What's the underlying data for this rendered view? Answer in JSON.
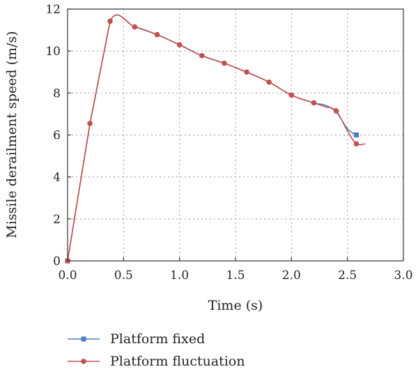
{
  "chart_data": {
    "type": "line",
    "title": "",
    "xlabel": "Time (s)",
    "ylabel": "Missile derailment speed (m/s)",
    "xlim": [
      0,
      3.0
    ],
    "ylim": [
      0,
      12
    ],
    "x_ticks": [
      "0.0",
      "0.5",
      "1.0",
      "1.5",
      "2.0",
      "2.5",
      "3.0"
    ],
    "y_ticks": [
      "0",
      "2",
      "4",
      "6",
      "8",
      "10",
      "12"
    ],
    "grid": true,
    "legend_position": "bottom",
    "series": [
      {
        "name": "Platform fixed",
        "color": "#4a7cc1",
        "marker": "square",
        "line": [
          [
            0,
            0
          ],
          [
            0.2,
            6.55
          ],
          [
            0.38,
            11.42
          ],
          [
            0.6,
            11.15
          ],
          [
            0.8,
            10.78
          ],
          [
            1.0,
            10.3
          ],
          [
            1.2,
            9.78
          ],
          [
            1.4,
            9.42
          ],
          [
            1.6,
            9.0
          ],
          [
            1.8,
            8.52
          ],
          [
            2.0,
            7.9
          ],
          [
            2.2,
            7.53
          ],
          [
            2.3,
            7.42
          ],
          [
            2.4,
            7.1
          ],
          [
            2.5,
            6.3
          ],
          [
            2.58,
            6.0
          ]
        ],
        "markers": [
          [
            0,
            0
          ],
          [
            2.58,
            6.0
          ]
        ]
      },
      {
        "name": "Platform fluctuation",
        "color": "#c0504d",
        "marker": "circle",
        "line": [
          [
            0,
            0
          ],
          [
            0.2,
            6.55
          ],
          [
            0.38,
            11.42
          ],
          [
            0.6,
            11.15
          ],
          [
            0.8,
            10.78
          ],
          [
            1.0,
            10.3
          ],
          [
            1.2,
            9.78
          ],
          [
            1.4,
            9.42
          ],
          [
            1.6,
            9.0
          ],
          [
            1.8,
            8.52
          ],
          [
            2.0,
            7.9
          ],
          [
            2.2,
            7.53
          ],
          [
            2.3,
            7.35
          ],
          [
            2.4,
            7.15
          ],
          [
            2.5,
            6.2
          ],
          [
            2.58,
            5.58
          ],
          [
            2.66,
            5.58
          ]
        ],
        "markers": [
          [
            0,
            0
          ],
          [
            0.2,
            6.55
          ],
          [
            0.38,
            11.42
          ],
          [
            0.6,
            11.15
          ],
          [
            0.8,
            10.78
          ],
          [
            1.0,
            10.3
          ],
          [
            1.2,
            9.78
          ],
          [
            1.4,
            9.42
          ],
          [
            1.6,
            9.0
          ],
          [
            1.8,
            8.52
          ],
          [
            2.0,
            7.9
          ],
          [
            2.2,
            7.53
          ],
          [
            2.4,
            7.15
          ],
          [
            2.58,
            5.58
          ]
        ]
      }
    ]
  }
}
